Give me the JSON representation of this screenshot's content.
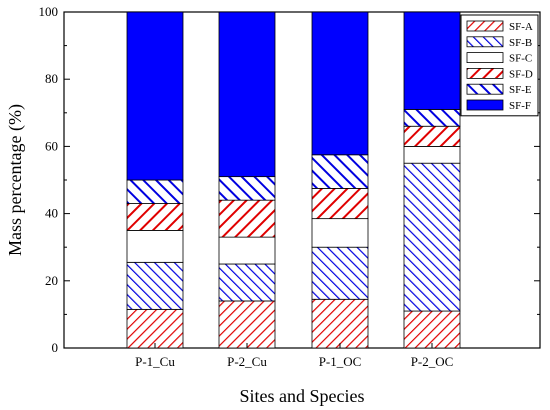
{
  "chart_data": {
    "type": "bar",
    "stacked": true,
    "xlabel": "Sites and Species",
    "ylabel": "Mass percentage (%)",
    "ylim": [
      0,
      100
    ],
    "yticks": [
      0,
      20,
      40,
      60,
      80,
      100
    ],
    "categories": [
      "P-1_Cu",
      "P-2_Cu",
      "P-1_OC",
      "P-2_OC"
    ],
    "legend_position": "top-right",
    "series": [
      {
        "name": "SF-A",
        "values": [
          11.5,
          14,
          14.5,
          11
        ],
        "color": "#e00000",
        "pattern": "hatch-red-fine"
      },
      {
        "name": "SF-B",
        "values": [
          14,
          11,
          15.5,
          44
        ],
        "color": "#0000e0",
        "pattern": "hatch-blue-fine"
      },
      {
        "name": "SF-C",
        "values": [
          9.5,
          8,
          8.5,
          5
        ],
        "color": "#ffffff",
        "pattern": "solid-white"
      },
      {
        "name": "SF-D",
        "values": [
          8,
          11,
          9,
          6
        ],
        "color": "#e00000",
        "pattern": "hatch-red-wide"
      },
      {
        "name": "SF-E",
        "values": [
          7,
          7,
          10,
          5
        ],
        "color": "#0000e0",
        "pattern": "hatch-blue-wide"
      },
      {
        "name": "SF-F",
        "values": [
          50,
          49,
          42.5,
          29
        ],
        "color": "#0000ff",
        "pattern": "solid-blue"
      }
    ]
  }
}
